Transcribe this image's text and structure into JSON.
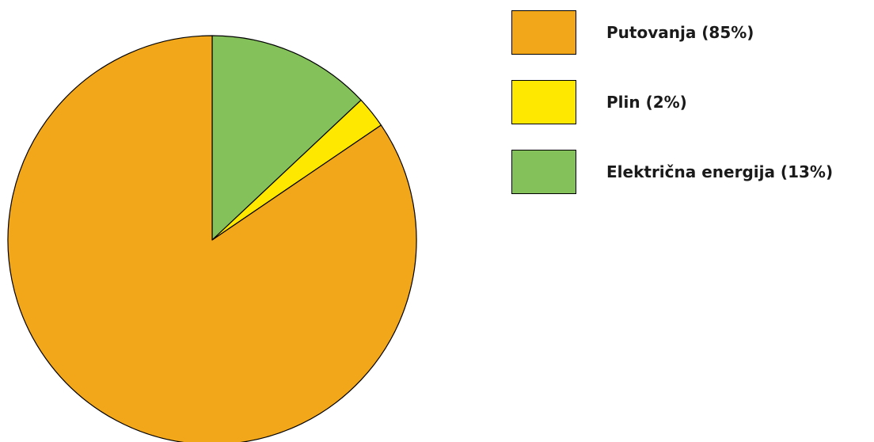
{
  "chart_data": {
    "type": "pie",
    "start_angle_deg": 0,
    "direction": "clockwise",
    "slices": [
      {
        "label": "Električna energija (13%)",
        "value": 13,
        "color": "#84c15a"
      },
      {
        "label": "Plin (2%)",
        "value": 2.5,
        "color": "#ffe800"
      },
      {
        "label": "Putovanja (85%)",
        "value": 84.5,
        "color": "#f2a619"
      }
    ],
    "legend": {
      "placement": "top-right",
      "entries": [
        {
          "label": "Putovanja (85%)",
          "color": "#f2a619"
        },
        {
          "label": "Plin (2%)",
          "color": "#ffe800"
        },
        {
          "label": "Električna energija (13%)",
          "color": "#84c15a"
        }
      ]
    }
  }
}
